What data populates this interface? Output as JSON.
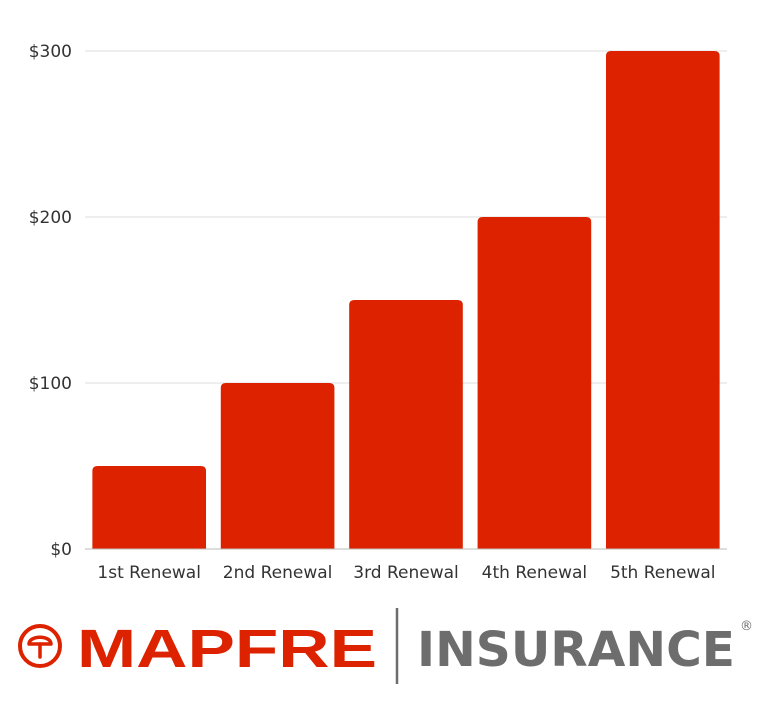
{
  "chart_data": {
    "type": "bar",
    "categories": [
      "1st Renewal",
      "2nd Renewal",
      "3rd Renewal",
      "4th Renewal",
      "5th Renewal"
    ],
    "values": [
      50,
      100,
      150,
      200,
      300
    ],
    "title": "",
    "xlabel": "",
    "ylabel": "",
    "ylim": [
      0,
      300
    ],
    "yticks": [
      0,
      100,
      200,
      300
    ],
    "ytick_labels": [
      "$0",
      "$100",
      "$200",
      "$300"
    ],
    "grid": true,
    "bar_color": "#dd2200"
  },
  "logo": {
    "brand": "MAPFRE",
    "word": "INSURANCE",
    "registered": "®",
    "brand_color": "#dd2200",
    "word_color": "#6d6d6d",
    "icon": "mapfre-emblem-icon"
  }
}
